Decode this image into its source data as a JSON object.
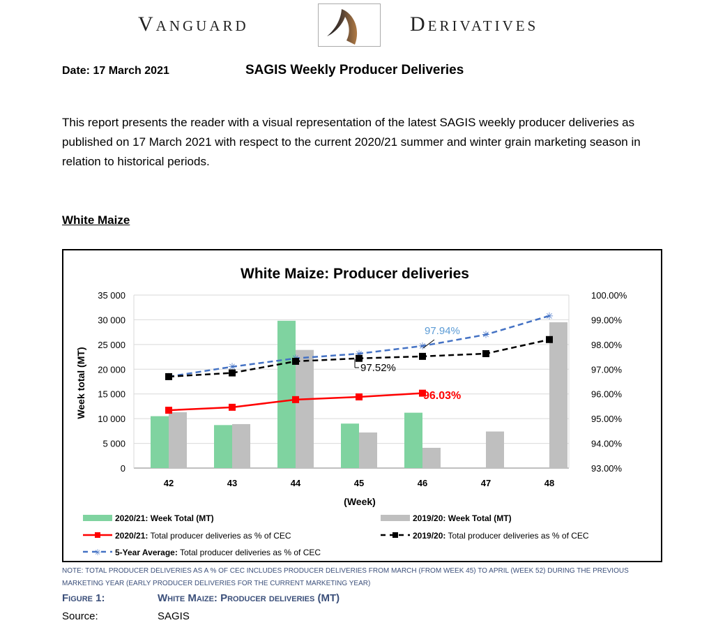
{
  "header": {
    "brand_left": "Vanguard",
    "brand_right": "Derivatives"
  },
  "report": {
    "date": "Date: 17 March 2021",
    "title": "SAGIS Weekly Producer Deliveries",
    "intro": "This report presents the reader with a visual representation of the latest SAGIS weekly producer deliveries as published on 17 March 2021 with respect to the current 2020/21 summer and winter grain marketing season in relation to historical periods.",
    "section": "White Maize"
  },
  "chart_data": {
    "type": "bar+line",
    "title": "White Maize: Producer deliveries",
    "xlabel": "(Week)",
    "ylabel": "Week total (MT)",
    "categories": [
      "42",
      "43",
      "44",
      "45",
      "46",
      "47",
      "48"
    ],
    "ylim": [
      0,
      35000
    ],
    "y_ticks": [
      "0",
      "5 000",
      "10 000",
      "15 000",
      "20 000",
      "25 000",
      "30 000",
      "35 000"
    ],
    "y2lim": [
      93,
      100
    ],
    "y2_ticks": [
      "93.00%",
      "94.00%",
      "95.00%",
      "96.00%",
      "97.00%",
      "98.00%",
      "99.00%",
      "100.00%"
    ],
    "grid": true,
    "legend_position": "bottom",
    "series": [
      {
        "name": "2020/21: Week Total (MT)",
        "type": "bar",
        "axis": "left",
        "color": "#7fd3a0",
        "values": [
          10500,
          8700,
          29800,
          9000,
          11200,
          null,
          null
        ]
      },
      {
        "name": "2019/20: Week Total (MT)",
        "type": "bar",
        "axis": "left",
        "color": "#bfbfbf",
        "values": [
          11300,
          8900,
          23900,
          7200,
          4100,
          7400,
          29500
        ]
      },
      {
        "name": "2020/21: Total producer deliveries as % of CEC",
        "type": "line",
        "axis": "right",
        "color": "#ff0000",
        "values": [
          95.34,
          95.46,
          95.77,
          95.88,
          96.03,
          null,
          null
        ]
      },
      {
        "name": "2019/20: Total producer deliveries as % of CEC",
        "type": "line",
        "axis": "right",
        "color": "#000000",
        "values": [
          96.7,
          96.85,
          97.32,
          97.44,
          97.52,
          97.63,
          98.2
        ]
      },
      {
        "name": "5-Year Average: Total producer deliveries as % of CEC",
        "type": "line",
        "axis": "right",
        "color": "#4472c4",
        "values": [
          96.7,
          97.1,
          97.44,
          97.63,
          97.94,
          98.4,
          99.16
        ]
      }
    ],
    "legend_prefix": [
      "2020/21:",
      "2019/20:",
      "2020/21:",
      "2019/20:",
      "5-Year Average:"
    ],
    "legend_rest": [
      " Week Total (MT)",
      " Week Total (MT)",
      " Total producer deliveries as % of CEC",
      " Total producer deliveries as % of CEC",
      " Total producer deliveries as % of CEC"
    ],
    "annotations": [
      "96.03%",
      "97.52%",
      "97.94%"
    ]
  },
  "footer": {
    "note": "Note: Total producer deliveries as a % of CEC includes producer deliveries from March (from week 45) to April (week 52) during the previous marketing year (early producer deliveries for the current marketing year)",
    "figure_label": "Figure 1:",
    "figure_title": "White Maize: Producer deliveries (MT)",
    "source_label": "Source:",
    "source_value": "SAGIS"
  }
}
